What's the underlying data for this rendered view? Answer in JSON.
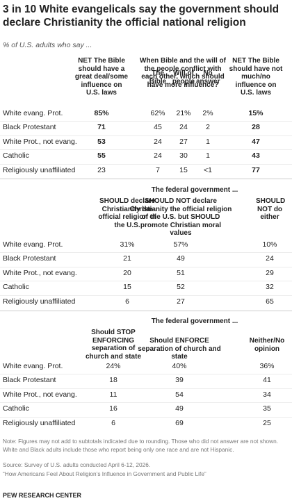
{
  "title": "3 in 10 White evangelicals say the government should declare Christianity the official national religion",
  "subtitle": "% of U.S. adults who say ...",
  "tables": [
    {
      "columns": [
        "NET The Bible should have a great deal/some influence on U.S. laws",
        "The Bible",
        "Will of people",
        "No answer",
        "NET The Bible should have not much/no influence on U.S. laws"
      ],
      "group_header": "When Bible and the will of the people conflict with each other, which should have more influence?",
      "rows": [
        {
          "label": "White evang. Prot.",
          "values": [
            "85%",
            "62%",
            "21%",
            "2%",
            "15%"
          ]
        },
        {
          "label": "Black Protestant",
          "values": [
            "71",
            "45",
            "24",
            "2",
            "28"
          ]
        },
        {
          "label": "White Prot., not evang.",
          "values": [
            "53",
            "24",
            "27",
            "1",
            "47"
          ]
        },
        {
          "label": "Catholic",
          "values": [
            "55",
            "24",
            "30",
            "1",
            "43"
          ]
        },
        {
          "label": "Religiously unaffiliated",
          "values": [
            "23",
            "7",
            "15",
            "<1",
            "77"
          ]
        }
      ]
    },
    {
      "heading": "The federal government ...",
      "columns": [
        "SHOULD declare Christianity the official religion of the U.S.",
        "SHOULD NOT declare Christianity the official religion of the U.S. but SHOULD promote Christian moral values",
        "SHOULD NOT do either"
      ],
      "rows": [
        {
          "label": "White evang. Prot.",
          "values": [
            "31%",
            "57%",
            "10%"
          ]
        },
        {
          "label": "Black Protestant",
          "values": [
            "21",
            "49",
            "24"
          ]
        },
        {
          "label": "White Prot., not evang.",
          "values": [
            "20",
            "51",
            "29"
          ]
        },
        {
          "label": "Catholic",
          "values": [
            "15",
            "52",
            "32"
          ]
        },
        {
          "label": "Religiously unaffiliated",
          "values": [
            "6",
            "27",
            "65"
          ]
        }
      ]
    },
    {
      "heading": "The federal government ...",
      "columns": [
        "Should STOP ENFORCING separation of church and state",
        "Should ENFORCE separation of church and state",
        "Neither/No opinion"
      ],
      "rows": [
        {
          "label": "White evang. Prot.",
          "values": [
            "24%",
            "40%",
            "36%"
          ]
        },
        {
          "label": "Black Protestant",
          "values": [
            "18",
            "39",
            "41"
          ]
        },
        {
          "label": "White Prot., not evang.",
          "values": [
            "11",
            "54",
            "34"
          ]
        },
        {
          "label": "Catholic",
          "values": [
            "16",
            "49",
            "35"
          ]
        },
        {
          "label": "Religiously unaffiliated",
          "values": [
            "6",
            "69",
            "25"
          ]
        }
      ]
    }
  ],
  "note": "Note: Figures may not add to subtotals indicated due to rounding. Those who did not answer are not shown. White and Black adults include those who report being only one race and are not Hispanic.",
  "source": "Source: Survey of U.S. adults conducted April 6-12, 2026.",
  "report": "“How Americans Feel About Religion’s Influence in Government and Public Life”",
  "footer": "PEW RESEARCH CENTER"
}
